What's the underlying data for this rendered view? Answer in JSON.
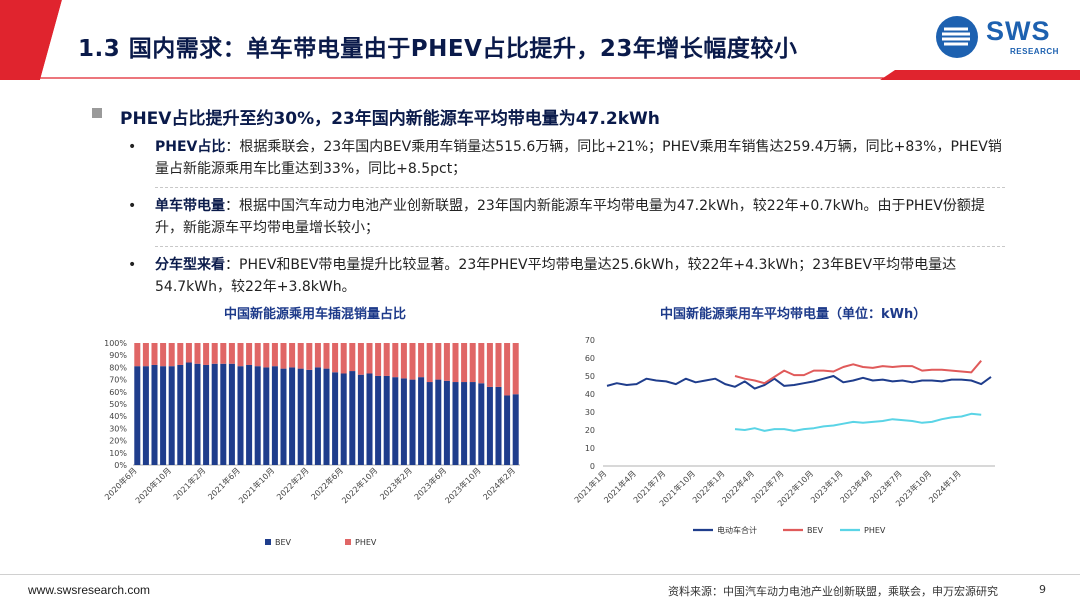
{
  "header": {
    "title": "1.3 国内需求：单车带电量由于PHEV占比提升，23年增长幅度较小",
    "logo_text": "SWS",
    "logo_sub": "RESEARCH",
    "accent_color": "#e0242e",
    "brand_color": "#1d61b0"
  },
  "section": {
    "heading": "PHEV占比提升至约30%，23年国内新能源车平均带电量为47.2kWh",
    "bullets": [
      {
        "label": "PHEV占比",
        "text": "：根据乘联会，23年国内BEV乘用车销量达515.6万辆，同比+21%；PHEV乘用车销售达259.4万辆，同比+83%，PHEV销量占新能源乘用车比重达到33%，同比+8.5pct；"
      },
      {
        "label": "单车带电量",
        "text": "：根据中国汽车动力电池产业创新联盟，23年国内新能源车平均带电量为47.2kWh，较22年+0.7kWh。由于PHEV份额提升，新能源车平均带电量增长较小；"
      },
      {
        "label": "分车型来看",
        "text": "：PHEV和BEV带电量提升比较显著。23年PHEV平均带电量达25.6kWh，较22年+4.3kWh；23年BEV平均带电量达54.7kWh，较22年+3.8kWh。"
      }
    ]
  },
  "chart_data": [
    {
      "type": "bar",
      "stacked": true,
      "title": "中国新能源乘用车插混销量占比",
      "yticks": [
        "0%",
        "10%",
        "20%",
        "30%",
        "40%",
        "50%",
        "60%",
        "70%",
        "80%",
        "90%",
        "100%"
      ],
      "ylim": [
        0,
        100
      ],
      "xtick_labels": [
        "2020年6月",
        "2020年10月",
        "2021年2月",
        "2021年6月",
        "2021年10月",
        "2022年2月",
        "2022年6月",
        "2022年10月",
        "2023年2月",
        "2023年6月",
        "2023年10月",
        "2024年2月"
      ],
      "categories_start": "2020年6月",
      "num_bars": 45,
      "series": [
        {
          "name": "BEV",
          "color": "#1f3d8c",
          "values": [
            81,
            81,
            82,
            81,
            81,
            82,
            84,
            83,
            82,
            83,
            83,
            83,
            81,
            82,
            81,
            80,
            81,
            79,
            80,
            79,
            78,
            80,
            79,
            76,
            75,
            77,
            74,
            75,
            73,
            73,
            72,
            71,
            70,
            72,
            68,
            70,
            69,
            68,
            68,
            68,
            67,
            64,
            64,
            57,
            58
          ]
        },
        {
          "name": "PHEV",
          "color": "#e06666",
          "values": [
            19,
            19,
            18,
            19,
            19,
            18,
            16,
            17,
            18,
            17,
            17,
            17,
            19,
            18,
            19,
            20,
            19,
            21,
            20,
            21,
            22,
            20,
            21,
            24,
            25,
            23,
            26,
            25,
            27,
            27,
            28,
            29,
            30,
            28,
            32,
            30,
            31,
            32,
            32,
            32,
            33,
            36,
            36,
            43,
            42
          ]
        }
      ]
    },
    {
      "type": "line",
      "title": "中国新能源乘用车平均带电量（单位：kWh）",
      "yticks": [
        "0",
        "10",
        "20",
        "30",
        "40",
        "50",
        "60",
        "70"
      ],
      "ylim": [
        0,
        70
      ],
      "xtick_labels": [
        "2021年1月",
        "2021年4月",
        "2021年7月",
        "2021年10月",
        "2022年1月",
        "2022年4月",
        "2022年7月",
        "2022年10月",
        "2023年1月",
        "2023年4月",
        "2023年7月",
        "2023年10月",
        "2024年1月"
      ],
      "num_points": 40,
      "series": [
        {
          "name": "电动车合计",
          "color": "#1f3d8c",
          "values": [
            44.5,
            46,
            45,
            45.5,
            48.5,
            47.5,
            47,
            45.5,
            48.5,
            46.5,
            47.5,
            48.5,
            45.5,
            44,
            47,
            43,
            45,
            48.5,
            44.5,
            45,
            46,
            47,
            48.5,
            50,
            46.5,
            47.5,
            49,
            47.5,
            48,
            47,
            47.5,
            46.5,
            47.5,
            47.5,
            47,
            48,
            48,
            47.5,
            45.5,
            49.5
          ]
        },
        {
          "name": "BEV",
          "color": "#e05a5a",
          "start_index": 13,
          "values": [
            50,
            48.5,
            47.5,
            46,
            49.5,
            53,
            50.5,
            50.5,
            53,
            53,
            52.5,
            55,
            56.5,
            55,
            54.5,
            55.5,
            55,
            55.5,
            55.5,
            53,
            53.5,
            53.5,
            53,
            52.5,
            52,
            58.5
          ]
        },
        {
          "name": "PHEV",
          "color": "#5ad4e6",
          "start_index": 13,
          "values": [
            20.5,
            20,
            21,
            19.5,
            20.5,
            20.5,
            19.5,
            20.5,
            21,
            22,
            22.5,
            23.5,
            24.5,
            24,
            24.5,
            25,
            26,
            25.5,
            25,
            24,
            24.5,
            26,
            27,
            27.5,
            29,
            28.5
          ]
        }
      ]
    }
  ],
  "footer": {
    "url": "www.swsresearch.com",
    "source": "资料来源：中国汽车动力电池产业创新联盟，乘联会，申万宏源研究",
    "page": "9"
  }
}
